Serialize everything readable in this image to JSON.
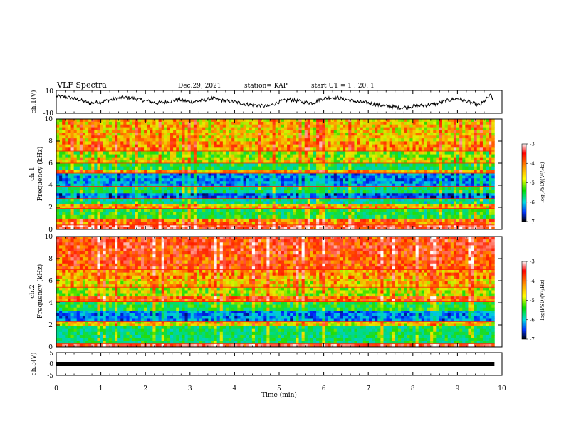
{
  "header": {
    "title": "VLF Spectra",
    "date": "Dec.29, 2021",
    "station": "station= KAP",
    "start_ut": "start  UT =   1 : 20: 1"
  },
  "chart_data": [
    {
      "type": "line",
      "id": "ch1-waveform",
      "ylabel": "ch.1(V)",
      "ylim": [
        -10,
        10
      ],
      "yticks": [
        "10",
        "-10"
      ],
      "xlim": [
        0,
        10
      ],
      "series": [
        {
          "x": [
            0,
            0.25,
            0.5,
            0.75,
            1.0,
            1.25,
            1.5,
            1.75,
            2.0,
            2.25,
            2.5,
            2.75,
            3.0,
            3.25,
            3.5,
            3.75,
            4.0,
            4.25,
            4.5,
            4.75,
            5.0,
            5.25,
            5.5,
            5.75,
            6.0,
            6.25,
            6.5,
            6.75,
            7.0,
            7.25,
            7.5,
            7.75,
            8.0,
            8.25,
            8.5,
            8.75,
            9.0,
            9.25,
            9.5,
            9.75,
            9.8
          ],
          "values": [
            5,
            4,
            2,
            -1,
            0,
            2,
            4,
            3,
            1,
            -1,
            0,
            2,
            0,
            1,
            3,
            1,
            0,
            -2,
            -3,
            -4,
            0,
            2,
            0,
            -1,
            3,
            4,
            2,
            0,
            -1,
            -3,
            -4,
            -5,
            -4,
            -3,
            -2,
            1,
            3,
            0,
            -3,
            6,
            2
          ]
        }
      ]
    },
    {
      "type": "heatmap",
      "id": "ch1-spectrogram",
      "ylabel": "ch.1\nFrequency (kHz)",
      "ylim": [
        0,
        10
      ],
      "yticks": [
        "0",
        "2",
        "4",
        "6",
        "8",
        "10"
      ],
      "xlim": [
        0,
        9.83
      ],
      "colorbar": {
        "label": "log(PSD)(V²/Hz)",
        "range": [
          -7,
          -3
        ],
        "ticks": [
          "-3",
          "-4",
          "-5",
          "-6",
          "-7"
        ]
      },
      "bands": [
        {
          "f": [
            0.0,
            0.4
          ],
          "level": -3.6
        },
        {
          "f": [
            0.4,
            1.0
          ],
          "level": -4.1
        },
        {
          "f": [
            1.0,
            1.9
          ],
          "level": -5.2
        },
        {
          "f": [
            1.9,
            2.3
          ],
          "level": -4.4
        },
        {
          "f": [
            2.3,
            2.8
          ],
          "level": -5.6
        },
        {
          "f": [
            2.8,
            3.3
          ],
          "level": -6.4
        },
        {
          "f": [
            3.3,
            3.9
          ],
          "level": -5.4
        },
        {
          "f": [
            3.9,
            4.4
          ],
          "level": -6.1
        },
        {
          "f": [
            4.4,
            5.1
          ],
          "level": -6.2
        },
        {
          "f": [
            5.1,
            5.4
          ],
          "level": -4.3
        },
        {
          "f": [
            5.4,
            6.0
          ],
          "level": -5.3
        },
        {
          "f": [
            6.0,
            6.5
          ],
          "level": -4.6
        },
        {
          "f": [
            6.5,
            7.1
          ],
          "level": -4.9
        },
        {
          "f": [
            7.1,
            8.0
          ],
          "level": -4.2
        },
        {
          "f": [
            8.0,
            10.0
          ],
          "level": -4.4
        }
      ]
    },
    {
      "type": "heatmap",
      "id": "ch2-spectrogram",
      "ylabel": "ch.2\nFrequency (kHz)",
      "ylim": [
        0,
        10
      ],
      "yticks": [
        "0",
        "2",
        "4",
        "6",
        "8",
        "10"
      ],
      "xlim": [
        0,
        9.83
      ],
      "colorbar": {
        "label": "log(PSD)(V²/Hz)",
        "range": [
          -7,
          -3
        ],
        "ticks": [
          "-3",
          "-4",
          "-5",
          "-6",
          "-7"
        ]
      },
      "bands": [
        {
          "f": [
            0.0,
            0.3
          ],
          "level": -3.6
        },
        {
          "f": [
            0.3,
            1.9
          ],
          "level": -5.4
        },
        {
          "f": [
            1.9,
            2.3
          ],
          "level": -4.5
        },
        {
          "f": [
            2.3,
            3.3
          ],
          "level": -6.2
        },
        {
          "f": [
            3.3,
            4.1
          ],
          "level": -5.2
        },
        {
          "f": [
            4.1,
            4.6
          ],
          "level": -4.0
        },
        {
          "f": [
            4.6,
            5.4
          ],
          "level": -4.7
        },
        {
          "f": [
            5.4,
            6.2
          ],
          "level": -4.4
        },
        {
          "f": [
            6.2,
            7.0
          ],
          "level": -4.2
        },
        {
          "f": [
            7.0,
            8.4
          ],
          "level": -3.9
        },
        {
          "f": [
            8.4,
            10.0
          ],
          "level": -3.8
        }
      ]
    },
    {
      "type": "line",
      "id": "ch3-waveform",
      "ylabel": "ch.3(V)",
      "ylim": [
        -5,
        5
      ],
      "yticks": [
        "5",
        "0",
        "-5"
      ],
      "xlim": [
        0,
        10
      ],
      "xlabel": "Time (min)",
      "xticks": [
        "0",
        "1",
        "2",
        "3",
        "4",
        "5",
        "6",
        "7",
        "8",
        "9",
        "10"
      ],
      "series": [
        {
          "x": [
            0,
            9.83
          ],
          "values": [
            0,
            0
          ]
        }
      ]
    }
  ]
}
